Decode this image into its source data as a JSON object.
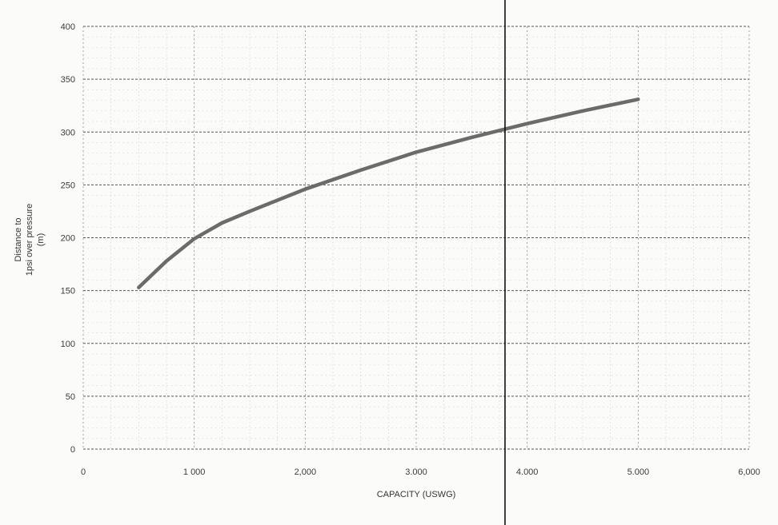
{
  "chart_data": {
    "type": "line",
    "xlabel": "CAPACITY (USWG)",
    "ylabel_line1": "Distance to",
    "ylabel_line2": "1psi over pressure",
    "ylabel_line3": "(m)",
    "xlim": [
      0,
      6000
    ],
    "ylim": [
      0,
      400
    ],
    "x_ticks": [
      0,
      1000,
      2000,
      3000,
      4000,
      5000,
      6000
    ],
    "x_tick_labels": [
      "0",
      "1 000",
      "2,000",
      "3.000",
      "4.000",
      "5.000",
      "6,000"
    ],
    "y_ticks": [
      0,
      50,
      100,
      150,
      200,
      250,
      300,
      350,
      400
    ],
    "y_tick_labels": [
      "0",
      "50",
      "100",
      "150",
      "200",
      "250",
      "300",
      "350",
      "400"
    ],
    "grid": true,
    "vertical_marker_x": 3800,
    "series": [
      {
        "color": "#6b6b6b",
        "x": [
          500,
          750,
          1000,
          1250,
          1500,
          2000,
          2500,
          3000,
          3500,
          4000,
          4500,
          5000
        ],
        "y": [
          153,
          178,
          199,
          214,
          225,
          246,
          264,
          281,
          295,
          308,
          320,
          331
        ]
      }
    ]
  }
}
